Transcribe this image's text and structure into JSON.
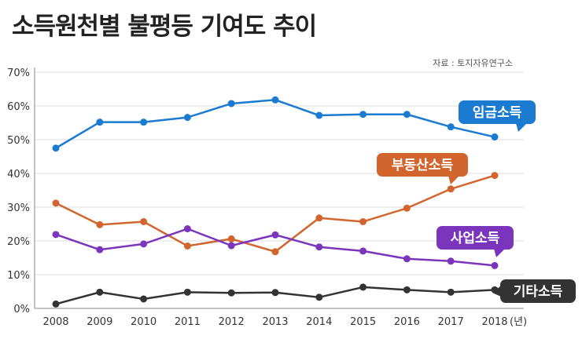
{
  "title": "소득원천별 불평등 기여도 추이",
  "chart_data": {
    "type": "line",
    "title": "소득원천별 불평등 기여도 추이",
    "source": "자료 : 토지자유연구소",
    "x": [
      "2008",
      "2009",
      "2010",
      "2011",
      "2012",
      "2013",
      "2014",
      "2015",
      "2016",
      "2017",
      "2018"
    ],
    "x_unit": "(년)",
    "ylim": [
      0,
      70
    ],
    "yticks": [
      "0%",
      "10%",
      "20%",
      "30%",
      "40%",
      "50%",
      "60%",
      "70%"
    ],
    "grid": true,
    "series": [
      {
        "name": "임금소득",
        "color": "#1a7bd0",
        "values": [
          47.5,
          55.2,
          55.2,
          56.6,
          60.7,
          61.8,
          57.2,
          57.5,
          57.5,
          53.8,
          50.8
        ]
      },
      {
        "name": "부동산소득",
        "color": "#d2652e",
        "values": [
          31.2,
          24.8,
          25.7,
          18.5,
          20.6,
          16.8,
          26.8,
          25.7,
          29.7,
          35.4,
          39.4
        ]
      },
      {
        "name": "사업소득",
        "color": "#7b35bd",
        "values": [
          21.9,
          17.4,
          19.1,
          23.6,
          18.6,
          21.8,
          18.2,
          17.0,
          14.7,
          14.0,
          12.7
        ]
      },
      {
        "name": "기타소득",
        "color": "#333333",
        "values": [
          1.3,
          4.8,
          2.8,
          4.8,
          4.6,
          4.7,
          3.3,
          6.3,
          5.5,
          4.8,
          5.5
        ]
      }
    ]
  }
}
